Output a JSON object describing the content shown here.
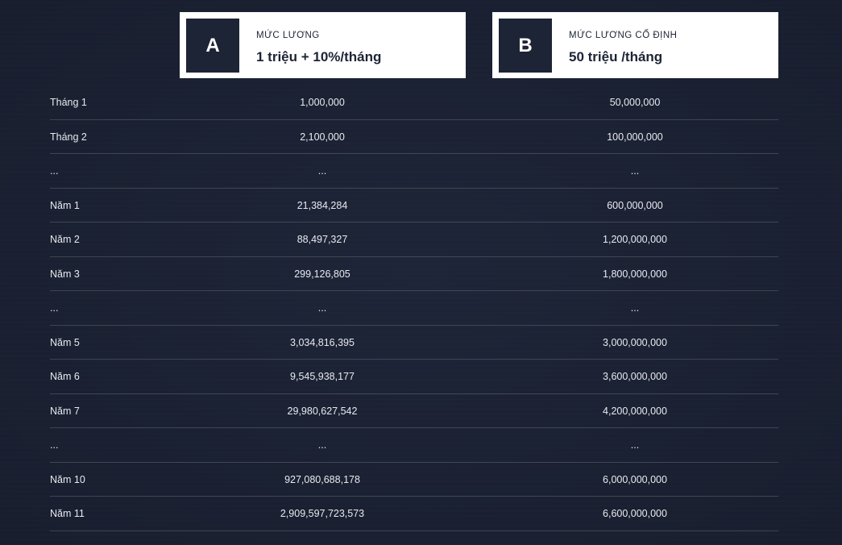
{
  "cards": {
    "a": {
      "letter": "A",
      "label": "MỨC LƯƠNG",
      "value": "1 triệu  +  10%/tháng"
    },
    "b": {
      "letter": "B",
      "label": "MỨC LƯƠNG CỐ ĐỊNH",
      "value": "50 triệu /tháng"
    }
  },
  "rows": [
    {
      "label": "Tháng 1",
      "a": "1,000,000",
      "b": "50,000,000"
    },
    {
      "label": "Tháng 2",
      "a": "2,100,000",
      "b": "100,000,000"
    },
    {
      "label": "...",
      "a": "...",
      "b": "..."
    },
    {
      "label": "Năm 1",
      "a": "21,384,284",
      "b": "600,000,000"
    },
    {
      "label": "Năm 2",
      "a": "88,497,327",
      "b": "1,200,000,000"
    },
    {
      "label": "Năm 3",
      "a": "299,126,805",
      "b": "1,800,000,000"
    },
    {
      "label": "...",
      "a": "...",
      "b": "..."
    },
    {
      "label": "Năm 5",
      "a": "3,034,816,395",
      "b": "3,000,000,000"
    },
    {
      "label": "Năm 6",
      "a": "9,545,938,177",
      "b": "3,600,000,000"
    },
    {
      "label": "Năm 7",
      "a": "29,980,627,542",
      "b": "4,200,000,000"
    },
    {
      "label": "...",
      "a": "...",
      "b": "..."
    },
    {
      "label": "Năm 10",
      "a": "927,080,688,178",
      "b": "6,000,000,000"
    },
    {
      "label": "Năm 11",
      "a": "2,909,597,723,573",
      "b": "6,600,000,000"
    }
  ]
}
